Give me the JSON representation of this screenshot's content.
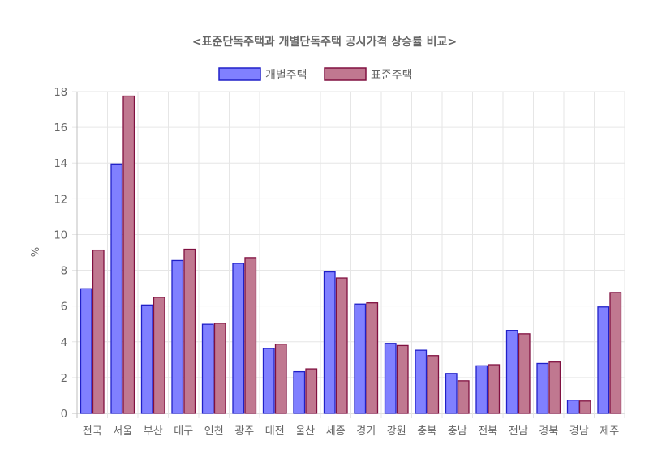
{
  "chart_data": {
    "type": "bar",
    "title": "<표준단독주택과 개별단독주택 공시가격 상승률 비교>",
    "ylabel": "%",
    "xlabel": "",
    "ylim": [
      0,
      18
    ],
    "yticks": [
      0,
      2,
      4,
      6,
      8,
      10,
      12,
      14,
      16,
      18
    ],
    "grid": true,
    "legend_position": "top",
    "categories": [
      "전국",
      "서울",
      "부산",
      "대구",
      "인천",
      "광주",
      "대전",
      "울산",
      "세종",
      "경기",
      "강원",
      "충북",
      "충남",
      "전북",
      "전남",
      "경북",
      "경남",
      "제주"
    ],
    "series": [
      {
        "name": "개별주택",
        "fill": "#8080ff",
        "stroke": "#2020c8",
        "values": [
          6.97,
          13.95,
          6.06,
          8.55,
          4.98,
          8.39,
          3.63,
          2.33,
          7.91,
          6.11,
          3.91,
          3.53,
          2.23,
          2.66,
          4.64,
          2.79,
          0.74,
          5.95
        ]
      },
      {
        "name": "표준주택",
        "fill": "#c07890",
        "stroke": "#801040",
        "values": [
          9.13,
          17.75,
          6.49,
          9.18,
          5.04,
          8.71,
          3.87,
          2.49,
          7.57,
          6.18,
          3.79,
          3.23,
          1.82,
          2.72,
          4.45,
          2.87,
          0.69,
          6.76
        ]
      }
    ]
  }
}
